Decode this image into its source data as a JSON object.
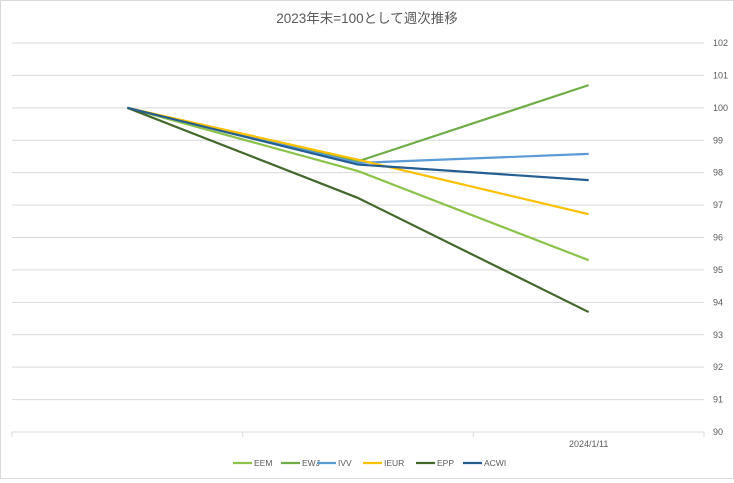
{
  "chart_data": {
    "type": "line",
    "title": "2023年末=100として週次推移",
    "categories": [
      "",
      "",
      "2024/1/11"
    ],
    "ylim": [
      90,
      102
    ],
    "yticks": [
      90,
      91,
      92,
      93,
      94,
      95,
      96,
      97,
      98,
      99,
      100,
      101,
      102
    ],
    "yaxis_position": "right",
    "grid": true,
    "legend_position": "bottom",
    "series": [
      {
        "name": "EEM",
        "color": "#8bc34a",
        "values": [
          100,
          98.05,
          95.3
        ]
      },
      {
        "name": "EWJ",
        "color": "#70ad47",
        "values": [
          100,
          98.35,
          100.7
        ]
      },
      {
        "name": "IVV",
        "color": "#5b9bd5",
        "values": [
          100,
          98.3,
          98.58
        ]
      },
      {
        "name": "IEUR",
        "color": "#ffc000",
        "values": [
          100,
          98.4,
          96.72
        ]
      },
      {
        "name": "EPP",
        "color": "#43682b",
        "values": [
          100,
          97.22,
          93.7
        ]
      },
      {
        "name": "ACWI",
        "color": "#255e91",
        "values": [
          100,
          98.25,
          97.77
        ]
      }
    ]
  }
}
